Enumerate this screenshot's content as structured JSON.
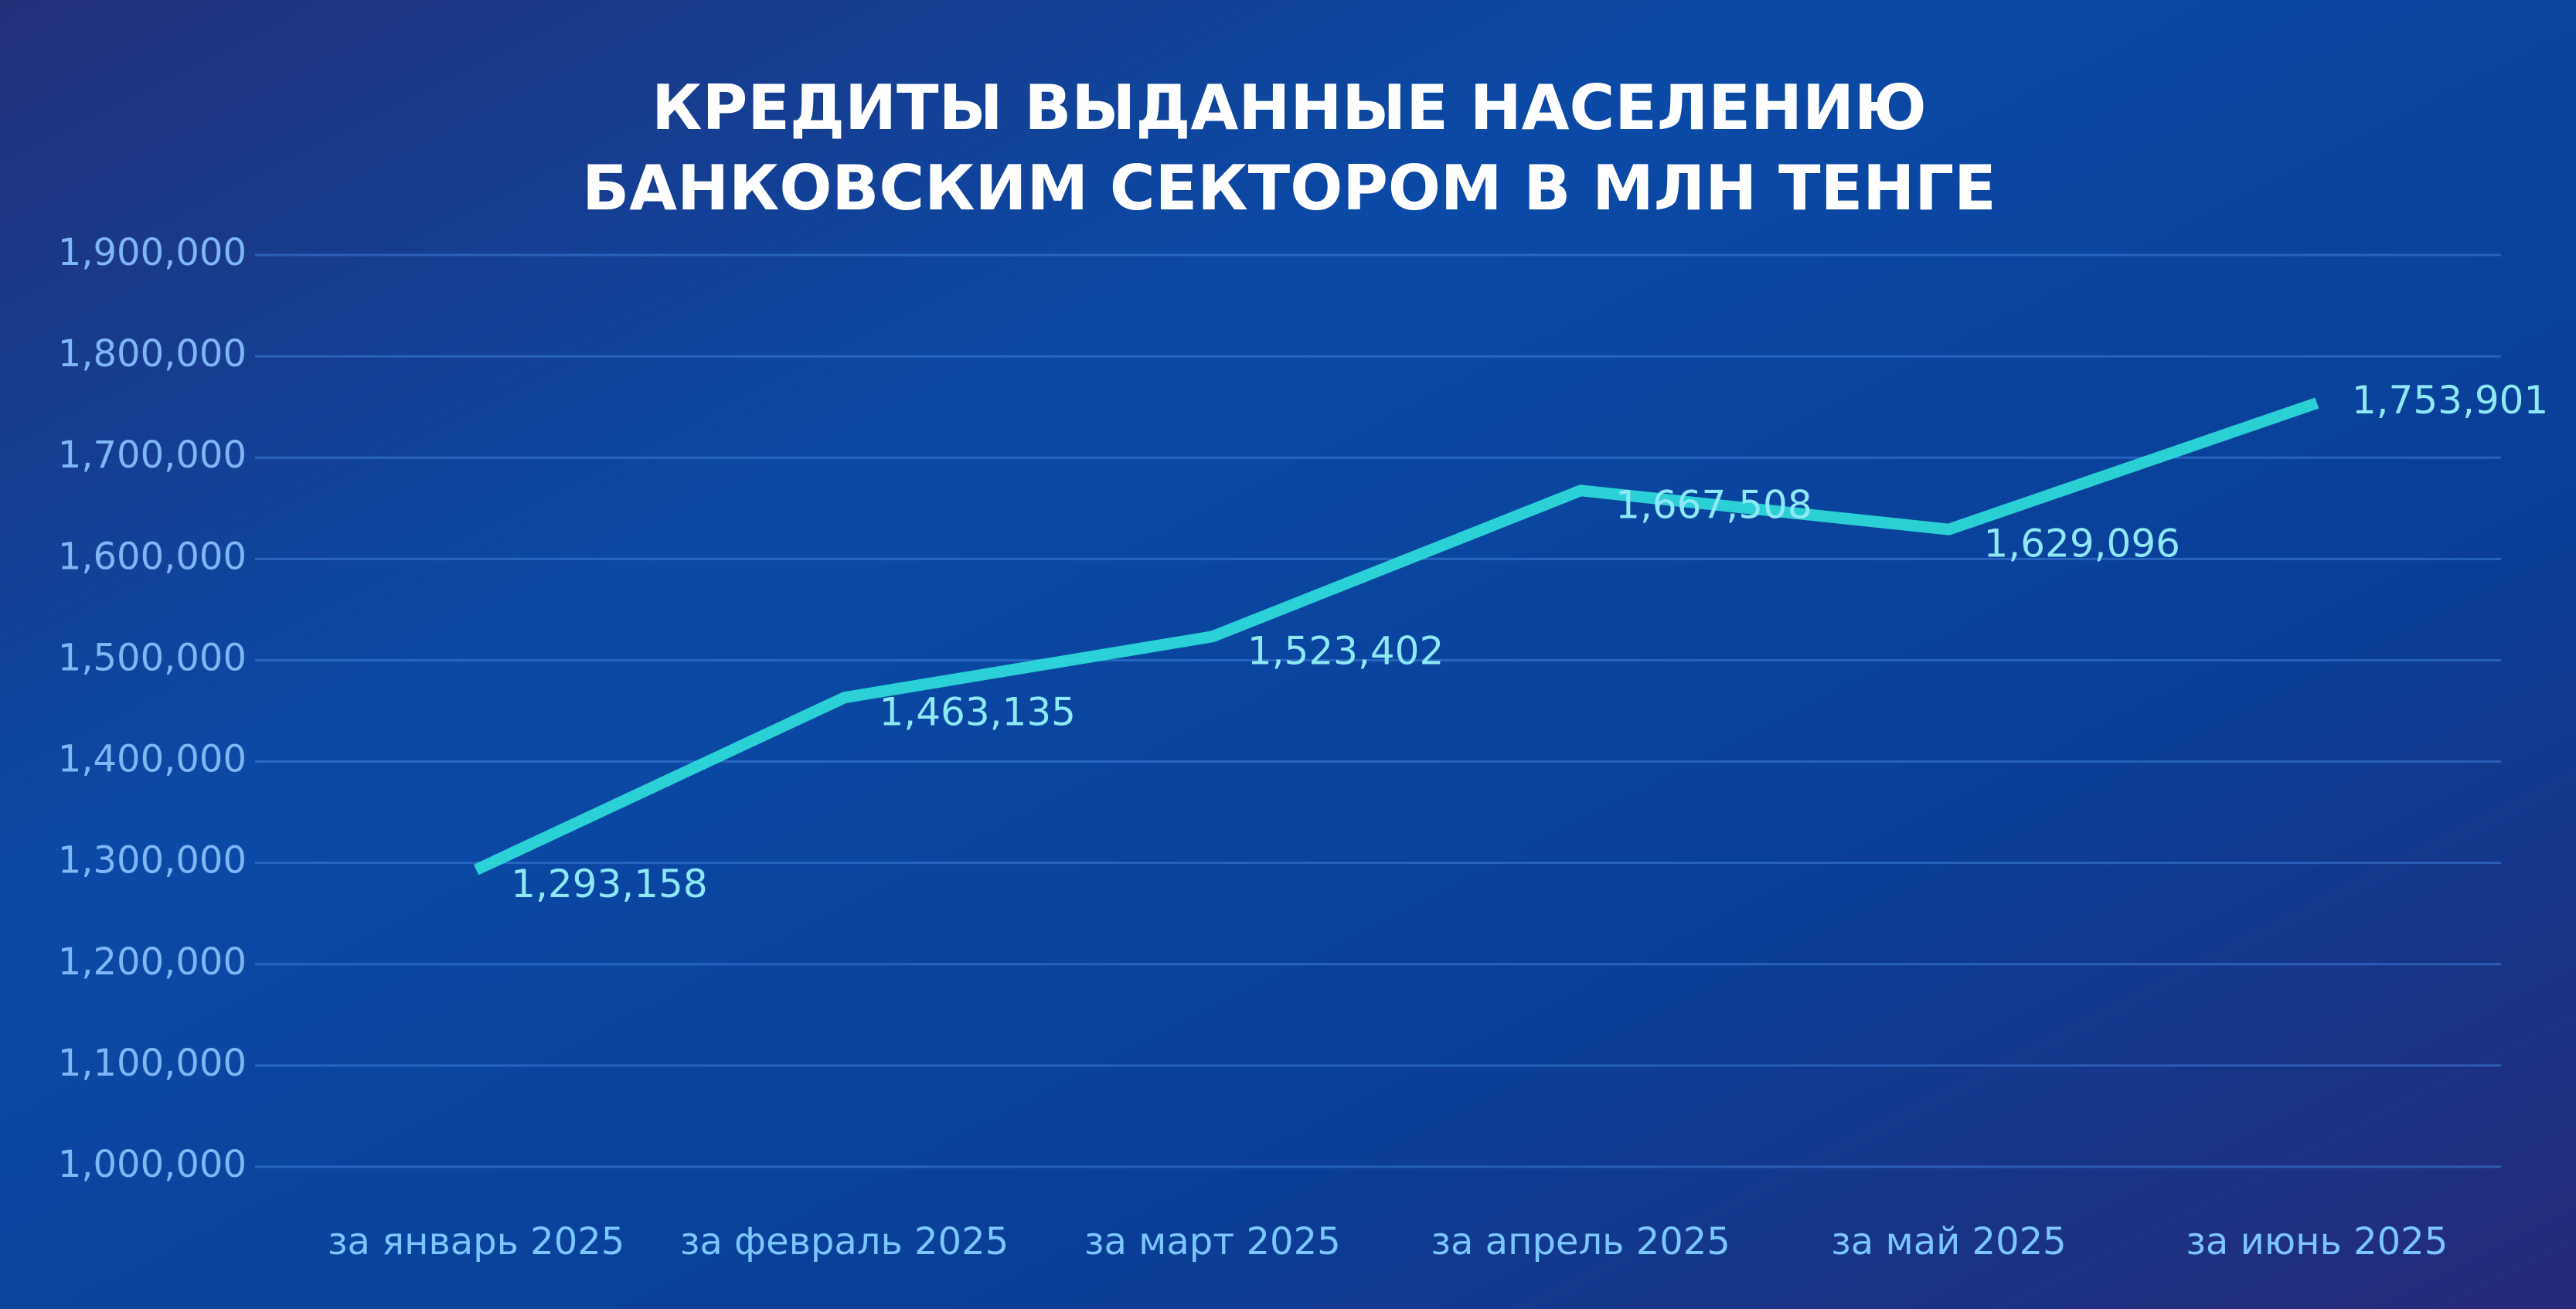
{
  "chart_data": {
    "type": "line",
    "title": [
      "КРЕДИТЫ ВЫДАННЫЕ НАСЕЛЕНИЮ",
      "БАНКОВСКИМ СЕКТОРОМ  В МЛН ТЕНГЕ"
    ],
    "categories": [
      "за январь 2025",
      "за февраль 2025",
      "за март 2025",
      "за апрель 2025",
      "за май 2025",
      "за июнь 2025"
    ],
    "values": [
      1293158,
      1463135,
      1523402,
      1667508,
      1629096,
      1753901
    ],
    "value_labels": [
      "1,293,158",
      "1,463,135",
      "1,523,402",
      "1,667,508",
      "1,629,096",
      "1,753,901"
    ],
    "color": "#2fe0dc",
    "ylim": [
      1000000,
      1900000
    ],
    "yticks": [
      {
        "value": 1000000,
        "label": "1,000,000"
      },
      {
        "value": 1100000,
        "label": "1,100,000"
      },
      {
        "value": 1200000,
        "label": "1,200,000"
      },
      {
        "value": 1300000,
        "label": "1,300,000"
      },
      {
        "value": 1400000,
        "label": "1,400,000"
      },
      {
        "value": 1500000,
        "label": "1,500,000"
      },
      {
        "value": 1600000,
        "label": "1,600,000"
      },
      {
        "value": 1700000,
        "label": "1,700,000"
      },
      {
        "value": 1800000,
        "label": "1,800,000"
      },
      {
        "value": 1900000,
        "label": "1,900,000"
      }
    ],
    "grid": true
  }
}
